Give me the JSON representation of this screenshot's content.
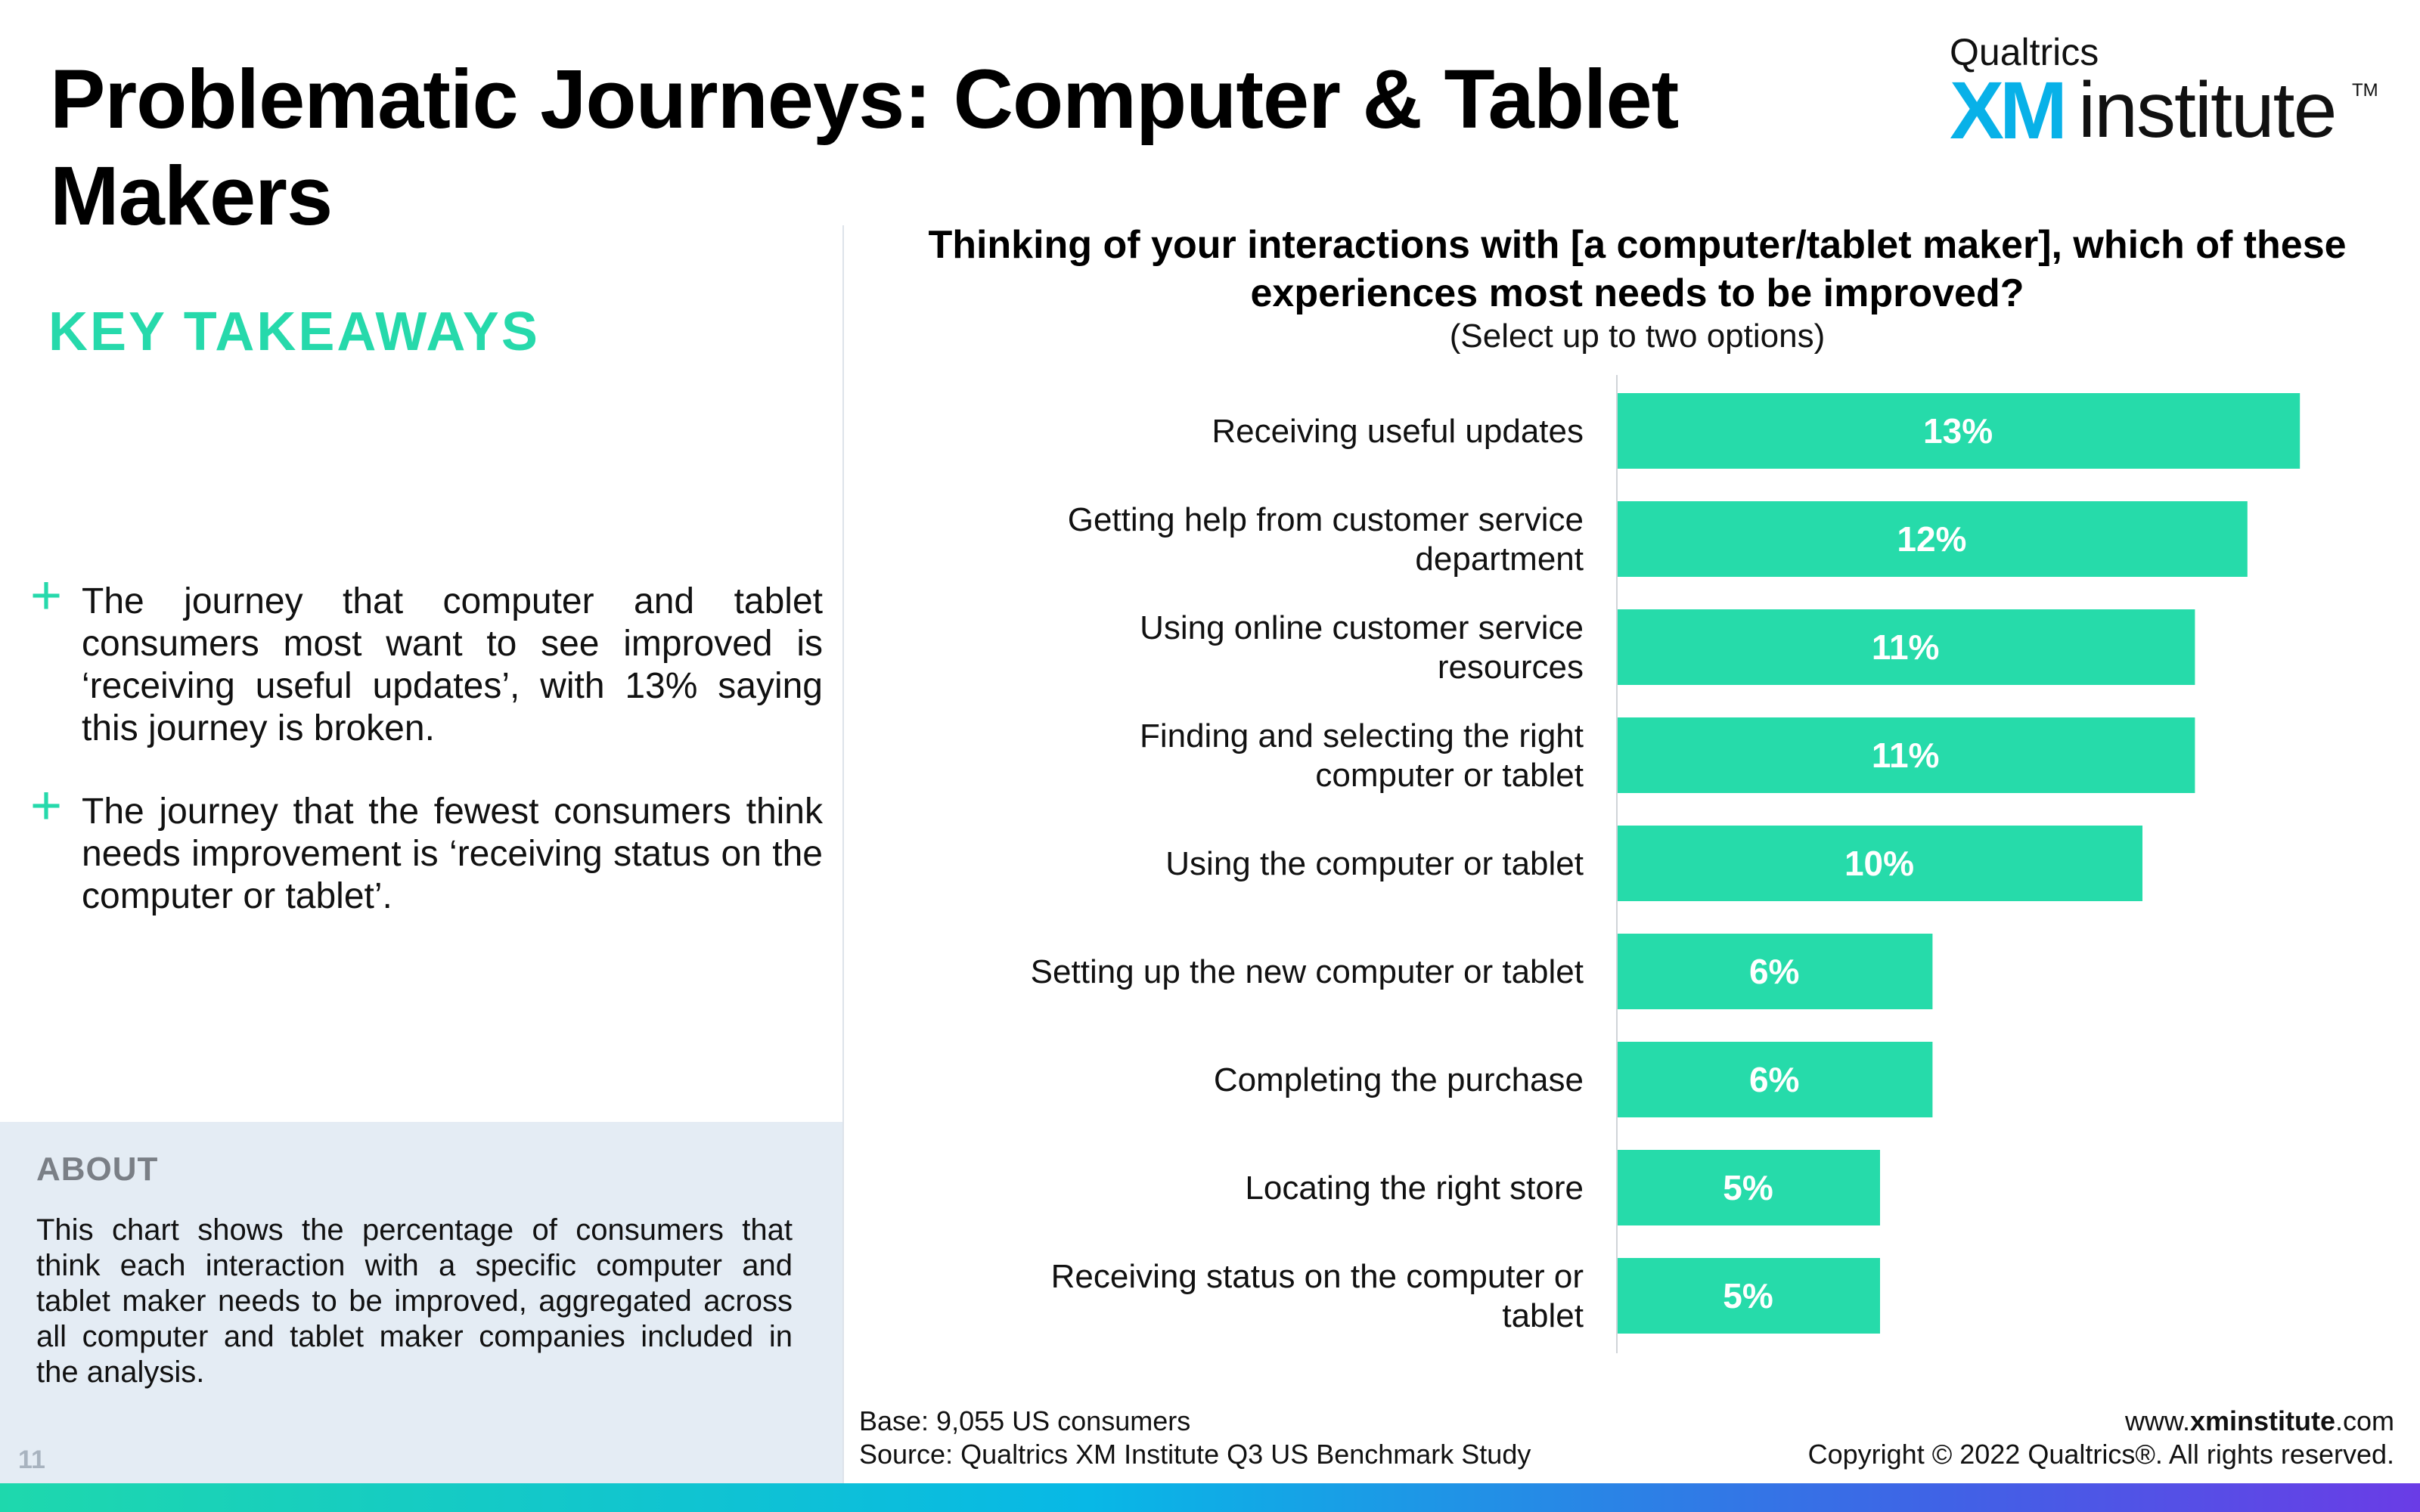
{
  "page": {
    "title": "Problematic Journeys: Computer & Tablet Makers",
    "page_number": "11"
  },
  "logo": {
    "top_text": "Qualtrics",
    "xm_text": "XM",
    "institute_text": "institute",
    "tm_text": "TM"
  },
  "takeaways": {
    "heading": "KEY TAKEAWAYS",
    "bullet_symbol": "+",
    "items": [
      "The journey that computer and tablet consumers most want to see improved is ‘receiving useful updates’, with 13% saying this journey is broken.",
      "The journey that the fewest consumers think needs improvement is ‘receiving status on the computer or tablet’."
    ]
  },
  "about": {
    "heading": "ABOUT",
    "text": "This chart shows the percentage of consumers that think each interaction with a specific computer and tablet maker needs to be improved, aggregated across all computer and tablet maker companies included in the analysis."
  },
  "chart_data": {
    "type": "bar",
    "orientation": "horizontal",
    "title": "Thinking of your interactions with [a computer/tablet maker], which of these experiences most needs to be improved?",
    "subtitle": "(Select up to two options)",
    "categories": [
      "Receiving useful updates",
      "Getting help from customer service department",
      "Using online customer service resources",
      "Finding and selecting the right computer or tablet",
      "Using the computer or tablet",
      "Setting up the new computer or tablet",
      "Completing the purchase",
      "Locating the right store",
      "Receiving status on the computer or tablet"
    ],
    "values": [
      13,
      12,
      11,
      11,
      10,
      6,
      6,
      5,
      5
    ],
    "value_labels": [
      "13%",
      "12%",
      "11%",
      "11%",
      "10%",
      "6%",
      "6%",
      "5%",
      "5%"
    ],
    "unit": "%",
    "xlim": [
      0,
      14
    ],
    "grid": false,
    "bar_color": "#26dbaa",
    "label_color": "#ffffff"
  },
  "footer": {
    "base": "Base: 9,055 US consumers",
    "source": "Source: Qualtrics XM Institute Q3 US Benchmark Study",
    "website_prefix": "www.",
    "website_bold": "xminstitute",
    "website_suffix": ".com",
    "copyright": "Copyright © 2022 Qualtrics®. All rights reserved."
  },
  "colors": {
    "accent_green": "#26d9ab",
    "about_background": "#e4ecf4",
    "logo_blue": "#08b1e8"
  }
}
